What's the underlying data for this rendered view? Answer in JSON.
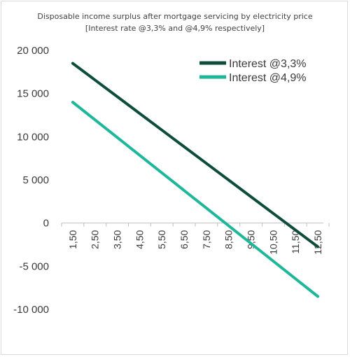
{
  "chart_data": {
    "type": "line",
    "title": "Disposable income surplus after mortgage servicing  by electricity price",
    "subtitle": "[Interest rate @3,3% and @4,9% respectively]",
    "xlabel": "",
    "ylabel": "",
    "categories": [
      "1,50",
      "2,50",
      "3,50",
      "4,50",
      "5,50",
      "6,50",
      "7,50",
      "8,50",
      "9,50",
      "10,50",
      "11,50",
      "12,50"
    ],
    "x": [
      1.5,
      2.5,
      3.5,
      4.5,
      5.5,
      6.5,
      7.5,
      8.5,
      9.5,
      10.5,
      11.5,
      12.5
    ],
    "ylim": [
      -10000,
      20000
    ],
    "yticks": [
      -10000,
      -5000,
      0,
      5000,
      10000,
      15000,
      20000
    ],
    "ytick_labels": [
      "-10 000",
      "-5 000",
      "0",
      "5 000",
      "10 000",
      "15 000",
      "20 000"
    ],
    "grid": false,
    "legend_position": "top-right",
    "series": [
      {
        "name": "Interest @3,3%",
        "color": "#0e4d3c",
        "values": [
          18500,
          16568,
          14636,
          12704,
          10773,
          8841,
          6909,
          4977,
          3045,
          1114,
          -818,
          -2750
        ]
      },
      {
        "name": "Interest @4,9%",
        "color": "#1fb79a",
        "values": [
          14000,
          11955,
          9909,
          7864,
          5818,
          3773,
          1727,
          -318,
          -2364,
          -4409,
          -6455,
          -8500
        ]
      }
    ]
  }
}
